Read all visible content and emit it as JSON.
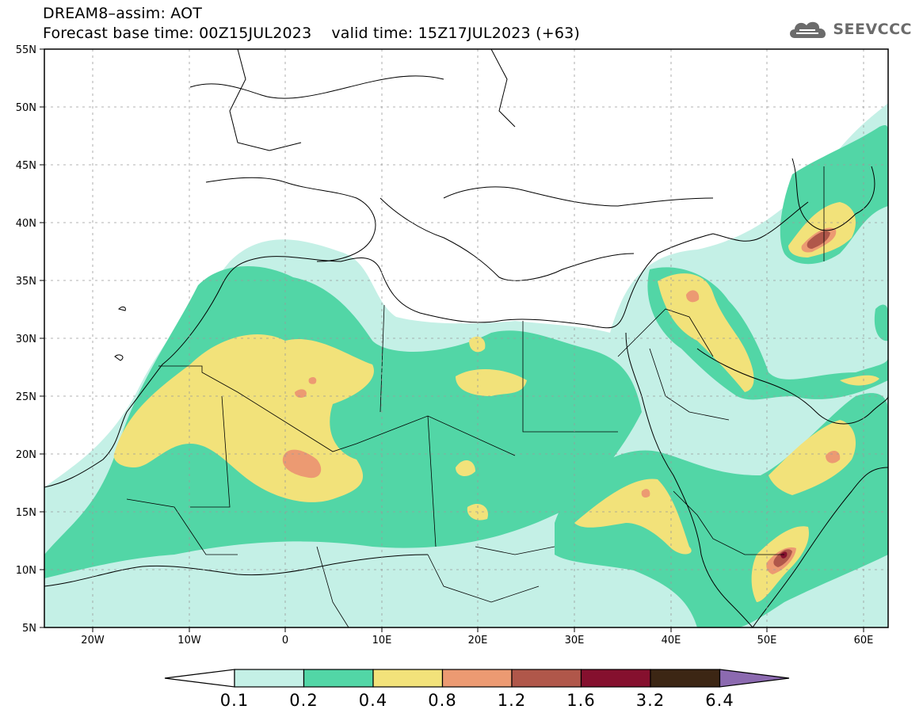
{
  "title": {
    "line1": "DREAM8–assim: AOT",
    "line2": "Forecast base time: 00Z15JUL2023    valid time: 15Z17JUL2023 (+63)"
  },
  "logo": {
    "text": "SEEVCCC",
    "icon": "cloud-icon",
    "color": "#6b6b6b"
  },
  "map": {
    "lon_range": [
      -25,
      65
    ],
    "lat_range": [
      5,
      55
    ],
    "x_ticks": [
      "20W",
      "10W",
      "0",
      "10E",
      "20E",
      "30E",
      "40E",
      "50E",
      "60E"
    ],
    "y_ticks": [
      "55N",
      "50N",
      "45N",
      "40N",
      "35N",
      "30N",
      "25N",
      "20N",
      "15N",
      "10N",
      "5N"
    ]
  },
  "colorbar": {
    "labels": [
      "0.1",
      "0.2",
      "0.4",
      "0.8",
      "1.2",
      "1.6",
      "3.2",
      "6.4"
    ],
    "colors": [
      "#c4f0e6",
      "#52d6a6",
      "#f2e27a",
      "#ec9a72",
      "#b0574a",
      "#85102e",
      "#3c2614",
      "#8c6ab0"
    ],
    "under_color": "#ffffff"
  }
}
